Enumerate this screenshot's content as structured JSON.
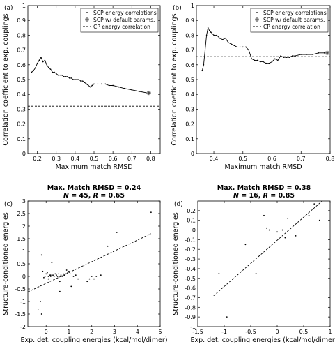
{
  "chart_data": [
    {
      "panel_label": "(a)",
      "type": "line",
      "xlabel": "Maximum match RMSD",
      "ylabel": "Correlation coefficient to exp. couplings",
      "xlim": [
        0.15,
        0.85
      ],
      "ylim": [
        0,
        1
      ],
      "xticks": [
        "0.2",
        "0.3",
        "0.4",
        "0.5",
        "0.6",
        "0.7",
        "0.8"
      ],
      "yticks": [
        "0",
        "0.1",
        "0.2",
        "0.3",
        "0.4",
        "0.5",
        "0.6",
        "0.7",
        "0.8",
        "0.9",
        "1"
      ],
      "legend": {
        "position": "top-right",
        "entries": [
          "SCP energy correlations",
          "SCP w/ default params.",
          "CP energy correlation"
        ]
      },
      "series": [
        {
          "name": "SCP energy correlations",
          "style": "dots",
          "x": [
            0.17,
            0.18,
            0.19,
            0.2,
            0.21,
            0.22,
            0.23,
            0.24,
            0.25,
            0.26,
            0.27,
            0.28,
            0.29,
            0.3,
            0.31,
            0.32,
            0.33,
            0.34,
            0.35,
            0.36,
            0.37,
            0.38,
            0.39,
            0.4,
            0.41,
            0.42,
            0.43,
            0.44,
            0.45,
            0.46,
            0.47,
            0.48,
            0.49,
            0.5,
            0.52,
            0.54,
            0.56,
            0.58,
            0.6,
            0.63,
            0.66,
            0.7,
            0.74,
            0.78,
            0.79
          ],
          "y": [
            0.55,
            0.56,
            0.58,
            0.61,
            0.63,
            0.65,
            0.62,
            0.63,
            0.6,
            0.58,
            0.57,
            0.55,
            0.55,
            0.54,
            0.53,
            0.53,
            0.53,
            0.52,
            0.52,
            0.52,
            0.51,
            0.51,
            0.5,
            0.5,
            0.5,
            0.5,
            0.49,
            0.49,
            0.48,
            0.47,
            0.46,
            0.45,
            0.46,
            0.47,
            0.47,
            0.47,
            0.47,
            0.46,
            0.46,
            0.45,
            0.44,
            0.43,
            0.42,
            0.41,
            0.41
          ]
        },
        {
          "name": "SCP w/ default params.",
          "style": "asterisk",
          "x": [
            0.79
          ],
          "y": [
            0.41
          ]
        },
        {
          "name": "CP energy correlation",
          "style": "dashed",
          "x": [
            0.15,
            0.85
          ],
          "y": [
            0.32,
            0.32
          ]
        }
      ]
    },
    {
      "panel_label": "(b)",
      "type": "line",
      "xlabel": "Maximum match RMSD",
      "ylabel": "Correlation coefficient to exp. couplings",
      "xlim": [
        0.34,
        0.8
      ],
      "ylim": [
        0,
        1
      ],
      "xticks": [
        "0.4",
        "0.5",
        "0.6",
        "0.7",
        "0.8"
      ],
      "yticks": [
        "0",
        "0.1",
        "0.2",
        "0.3",
        "0.4",
        "0.5",
        "0.6",
        "0.7",
        "0.8",
        "0.9",
        "1"
      ],
      "legend": {
        "position": "top-right",
        "entries": [
          "SCP energy correlations",
          "SCP w/ default params.",
          "CP energy correlation"
        ]
      },
      "series": [
        {
          "name": "SCP energy correlations",
          "style": "dots",
          "x": [
            0.36,
            0.365,
            0.37,
            0.375,
            0.38,
            0.385,
            0.39,
            0.4,
            0.41,
            0.42,
            0.43,
            0.44,
            0.45,
            0.46,
            0.47,
            0.48,
            0.49,
            0.5,
            0.51,
            0.52,
            0.53,
            0.54,
            0.55,
            0.56,
            0.57,
            0.58,
            0.59,
            0.6,
            0.61,
            0.62,
            0.63,
            0.64,
            0.65,
            0.66,
            0.67,
            0.68,
            0.7,
            0.72,
            0.74,
            0.76,
            0.78,
            0.79
          ],
          "y": [
            0.56,
            0.6,
            0.7,
            0.8,
            0.85,
            0.83,
            0.82,
            0.8,
            0.8,
            0.78,
            0.77,
            0.78,
            0.75,
            0.74,
            0.73,
            0.72,
            0.72,
            0.72,
            0.72,
            0.7,
            0.64,
            0.63,
            0.63,
            0.62,
            0.62,
            0.61,
            0.61,
            0.62,
            0.64,
            0.63,
            0.66,
            0.65,
            0.65,
            0.65,
            0.66,
            0.66,
            0.67,
            0.67,
            0.67,
            0.68,
            0.68,
            0.68
          ]
        },
        {
          "name": "SCP w/ default params.",
          "style": "asterisk",
          "x": [
            0.79
          ],
          "y": [
            0.68
          ]
        },
        {
          "name": "CP energy correlation",
          "style": "dashed",
          "x": [
            0.34,
            0.8
          ],
          "y": [
            0.655,
            0.655
          ]
        }
      ]
    },
    {
      "panel_label": "(c)",
      "type": "scatter",
      "title": "Max. Match RMSD = 0.24",
      "subtitle_parts": [
        "N",
        " = 45, ",
        "R",
        " = 0.65"
      ],
      "xlabel": "Exp. det. coupling energies (kcal/mol/dimer)",
      "ylabel": "Structure-conditioned energies",
      "xlim": [
        -0.8,
        5
      ],
      "ylim": [
        -2,
        3
      ],
      "xticks": [
        "0",
        "1",
        "2",
        "3",
        "4",
        "5"
      ],
      "yticks": [
        "-2",
        "-1.5",
        "-1",
        "-0.5",
        "0",
        "0.5",
        "1",
        "1.5",
        "2",
        "2.5",
        "3"
      ],
      "series": [
        {
          "name": "points",
          "style": "scatter",
          "x": [
            -0.35,
            -0.25,
            -0.2,
            -0.15,
            -0.1,
            -0.05,
            0,
            0.05,
            0.1,
            0.1,
            0.15,
            0.2,
            0.2,
            0.25,
            0.3,
            0.35,
            0.4,
            0.45,
            0.5,
            0.55,
            0.6,
            0.65,
            0.7,
            0.75,
            0.8,
            0.85,
            0.9,
            0.95,
            1.0,
            1.05,
            1.1,
            1.2,
            1.3,
            1.4,
            1.8,
            1.9,
            2.0,
            2.1,
            2.2,
            2.4,
            2.7,
            3.1,
            -0.2,
            0.6,
            4.6
          ],
          "y": [
            -1.3,
            -1.0,
            -1.5,
            0.2,
            -0.05,
            0,
            0.1,
            0.15,
            0,
            -0.1,
            0.05,
            0,
            0.05,
            0.55,
            0.05,
            0,
            0.1,
            0.05,
            0,
            0.1,
            -0.6,
            0.05,
            0,
            0.1,
            0.05,
            0.1,
            0.25,
            0.15,
            0.2,
            0.1,
            -0.4,
            0,
            0.05,
            -0.1,
            -0.2,
            -0.1,
            0.0,
            -0.1,
            0.0,
            0.05,
            1.2,
            1.75,
            0.85,
            -0.2,
            2.55
          ]
        },
        {
          "name": "fit",
          "style": "dashed",
          "x": [
            -0.8,
            4.6
          ],
          "y": [
            -0.62,
            1.7
          ]
        }
      ]
    },
    {
      "panel_label": "(d)",
      "type": "scatter",
      "title": "Max. Match RMSD = 0.38",
      "subtitle_parts": [
        "N",
        " = 16, ",
        "R",
        " = 0.85"
      ],
      "xlabel": "Exp. det. coupling energies (kcal/mol/dimer)",
      "ylabel": "Structure-conditioned energies",
      "xlim": [
        -1.5,
        1
      ],
      "ylim": [
        -1,
        0.3
      ],
      "xticks": [
        "-1.5",
        "-1",
        "-0.5",
        "0",
        "0.5",
        "1"
      ],
      "yticks": [
        "-1",
        "-0.9",
        "-0.8",
        "-0.7",
        "-0.6",
        "-0.5",
        "-0.4",
        "-0.3",
        "-0.2",
        "-0.1",
        "0",
        "0.1",
        "0.2"
      ],
      "series": [
        {
          "name": "points",
          "style": "scatter",
          "x": [
            -1.1,
            -0.95,
            -0.6,
            -0.4,
            -0.25,
            -0.2,
            -0.15,
            0.0,
            0.1,
            0.15,
            0.2,
            0.25,
            0.35,
            0.6,
            0.7,
            0.8
          ],
          "y": [
            -0.45,
            -0.9,
            -0.15,
            -0.45,
            0.15,
            0.02,
            0.0,
            -0.02,
            0.0,
            -0.08,
            0.12,
            0.02,
            -0.06,
            0.15,
            0.27,
            0.1
          ]
        },
        {
          "name": "fit",
          "style": "dashed",
          "x": [
            -1.2,
            0.85
          ],
          "y": [
            -0.68,
            0.3
          ]
        }
      ]
    }
  ]
}
